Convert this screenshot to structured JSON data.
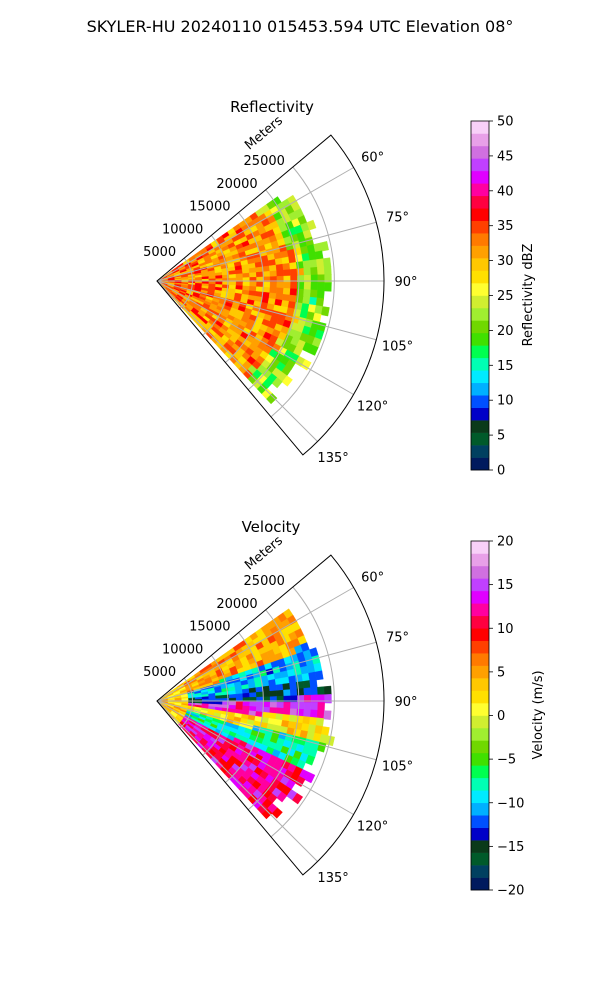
{
  "figure": {
    "title": "SKYLER-HU  20240110  015453.594 UTC Elevation 08°"
  },
  "colors": {
    "reflectivity_scale": [
      "#001a5e",
      "#004060",
      "#005a2a",
      "#0a3a1a",
      "#0000c8",
      "#0050ff",
      "#00b0ff",
      "#00eaff",
      "#00ffb4",
      "#00ff50",
      "#40e000",
      "#70d800",
      "#a0ee30",
      "#d0ee30",
      "#ffff30",
      "#ffe000",
      "#ffc800",
      "#ffa000",
      "#ff7a00",
      "#ff4000",
      "#ff0000",
      "#ff0040",
      "#ff00a0",
      "#e000ff",
      "#c040ff",
      "#d070e0",
      "#e8a0e8",
      "#f8d0f8"
    ],
    "velocity_scale": [
      "#001a5e",
      "#004060",
      "#005a2a",
      "#0a3a1a",
      "#0000c8",
      "#0050ff",
      "#00b0ff",
      "#00eaff",
      "#00ffb4",
      "#00ff50",
      "#40e000",
      "#70d800",
      "#a0ee30",
      "#d0ee30",
      "#ffff30",
      "#ffe000",
      "#ffc800",
      "#ffa000",
      "#ff7a00",
      "#ff4000",
      "#ff0000",
      "#ff0040",
      "#ff00a0",
      "#e000ff",
      "#c040ff",
      "#d070e0",
      "#e8a0e8",
      "#f8d0f8"
    ],
    "grid": "#b0b0b0",
    "frame": "#000000"
  },
  "chart_data": [
    {
      "type": "heatmap",
      "title": "Reflectivity",
      "projection": "polar-sector",
      "radial_label": "Meters",
      "radial_ticks": [
        5000,
        10000,
        15000,
        20000,
        25000
      ],
      "radial_tick_labels": [
        "5000",
        "10000",
        "15000",
        "20000",
        "25000"
      ],
      "rlim": [
        0,
        32000
      ],
      "theta_ticks_deg": [
        60,
        75,
        90,
        105,
        120,
        135
      ],
      "theta_tick_labels": [
        "60°",
        "75°",
        "90°",
        "105°",
        "120°",
        "135°"
      ],
      "theta_range_deg": [
        50,
        140
      ],
      "colorbar": {
        "label": "Reflectivity dBZ",
        "range": [
          0,
          50
        ],
        "ticks": [
          0,
          5,
          10,
          15,
          20,
          25,
          30,
          35,
          40,
          45,
          50
        ],
        "tick_labels": [
          "0",
          "5",
          "10",
          "15",
          "20",
          "25",
          "30",
          "35",
          "40",
          "45",
          "50"
        ]
      },
      "field_profile": {
        "near_range_dbz": 33,
        "mid_range_dbz": 31,
        "outer_edge_dbz": 21,
        "max_echo_range_m": 24000,
        "core_dbz_max": 38
      }
    },
    {
      "type": "heatmap",
      "title": "Velocity",
      "projection": "polar-sector",
      "radial_label": "Meters",
      "radial_ticks": [
        5000,
        10000,
        15000,
        20000,
        25000
      ],
      "radial_tick_labels": [
        "5000",
        "10000",
        "15000",
        "20000",
        "25000"
      ],
      "rlim": [
        0,
        32000
      ],
      "theta_ticks_deg": [
        60,
        75,
        90,
        105,
        120,
        135
      ],
      "theta_tick_labels": [
        "60°",
        "75°",
        "90°",
        "105°",
        "120°",
        "135°"
      ],
      "theta_range_deg": [
        50,
        140
      ],
      "colorbar": {
        "label": "Velocity (m/s)",
        "range": [
          -20,
          20
        ],
        "ticks": [
          -20,
          -15,
          -10,
          -5,
          0,
          5,
          10,
          15,
          20
        ],
        "tick_labels": [
          "−20",
          "−15",
          "−10",
          "−5",
          "0",
          "5",
          "10",
          "15",
          "20"
        ]
      },
      "field_profile": {
        "north_sector_ms": 10,
        "band_ms": [
          5,
          -10,
          -14,
          14,
          2,
          -8,
          12
        ],
        "band_center_deg": [
          68,
          82,
          91,
          97,
          105,
          113,
          126
        ],
        "south_edge_ms": 9
      }
    }
  ]
}
